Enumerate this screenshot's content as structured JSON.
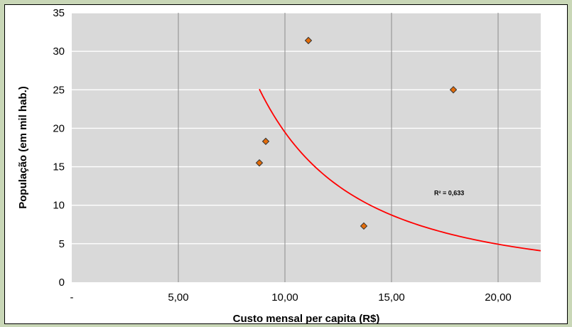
{
  "chart_data": {
    "type": "scatter",
    "title": "",
    "xlabel": "Custo mensal per capita (R$)",
    "ylabel": "População (em mil hab.)",
    "xlim": [
      0,
      22
    ],
    "ylim": [
      0,
      35
    ],
    "x_ticks": [
      {
        "value": 0,
        "label": "-"
      },
      {
        "value": 5,
        "label": "5,00"
      },
      {
        "value": 10,
        "label": "10,00"
      },
      {
        "value": 15,
        "label": "15,00"
      },
      {
        "value": 20,
        "label": "20,00"
      }
    ],
    "y_ticks": [
      {
        "value": 0,
        "label": "0"
      },
      {
        "value": 5,
        "label": "5"
      },
      {
        "value": 10,
        "label": "10"
      },
      {
        "value": 15,
        "label": "15"
      },
      {
        "value": 20,
        "label": "20"
      },
      {
        "value": 25,
        "label": "25"
      },
      {
        "value": 30,
        "label": "30"
      },
      {
        "value": 35,
        "label": "35"
      }
    ],
    "grid": true,
    "series": [
      {
        "points": [
          {
            "x": 8.8,
            "y": 15.5
          },
          {
            "x": 9.1,
            "y": 18.3
          },
          {
            "x": 11.1,
            "y": 31.4
          },
          {
            "x": 13.7,
            "y": 7.3
          },
          {
            "x": 17.9,
            "y": 25.0
          }
        ]
      }
    ],
    "trendline": {
      "type": "power",
      "coefficient": 1860,
      "exponent": -1.98,
      "x_start": 8.8,
      "x_end": 22,
      "color": "#ff0000"
    },
    "annotation": {
      "text": "R² = 0,633",
      "x": 17.0,
      "y": 11.3
    },
    "colors": {
      "plot_background": "#d9d9d9",
      "gridline_vertical": "#8c8c8c",
      "gridline_horizontal": "#ffffff",
      "marker_fill": "#e36c09",
      "marker_stroke": "#333333",
      "page_background": "#c9d7b7"
    }
  }
}
